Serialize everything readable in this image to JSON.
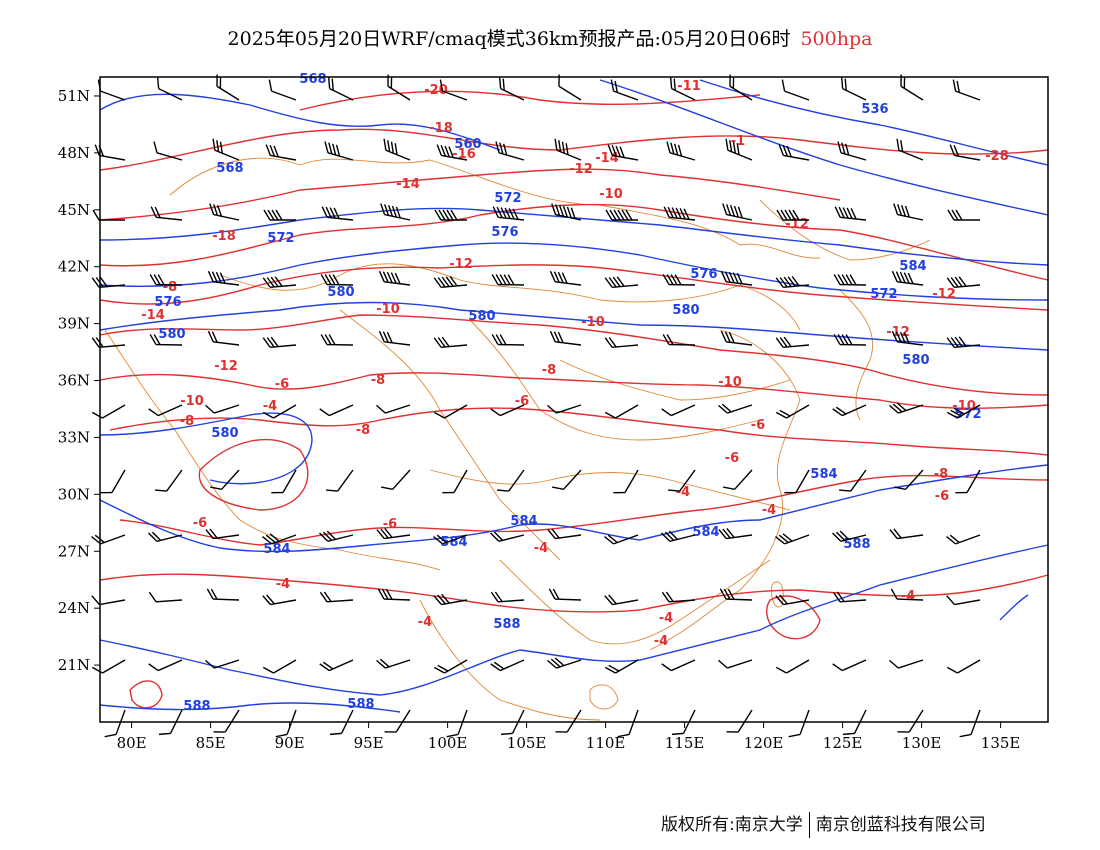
{
  "title": {
    "main": "2025年05月20日WRF/cmaq模式36km预报产品:05月20日06时",
    "level": "500hpa"
  },
  "axes": {
    "lat_labels": [
      "51N",
      "48N",
      "45N",
      "42N",
      "39N",
      "36N",
      "33N",
      "30N",
      "27N",
      "24N",
      "21N"
    ],
    "lon_labels": [
      "80E",
      "85E",
      "90E",
      "95E",
      "100E",
      "105E",
      "110E",
      "115E",
      "120E",
      "125E",
      "130E",
      "135E"
    ]
  },
  "map": {
    "lon_range": [
      78,
      138
    ],
    "lat_range": [
      18,
      52
    ],
    "geopotential_labels": [
      "536",
      "560",
      "568",
      "572",
      "576",
      "580",
      "584",
      "588"
    ],
    "temperature_labels": [
      "-28",
      "-20",
      "-18",
      "-16",
      "-14",
      "-12",
      "-10",
      "-8",
      "-6",
      "-4"
    ],
    "colors": {
      "geopotential_height": "#2040e0",
      "temperature": "#e03030",
      "boundaries": "#e08838",
      "wind_barbs": "#000000"
    }
  },
  "footer": {
    "copyright": "版权所有:南京大学",
    "company": "南京创蓝科技有限公司"
  }
}
